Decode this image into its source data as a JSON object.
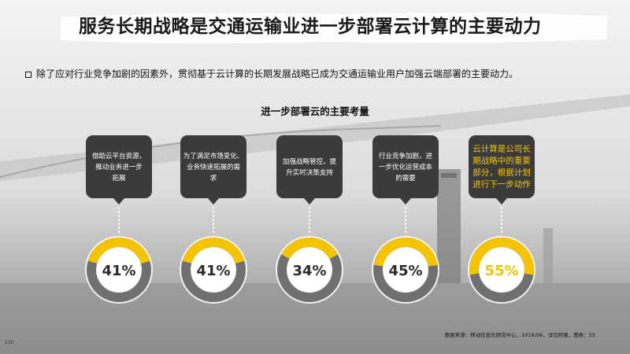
{
  "header": {
    "title": "服务长期战略是交通运输业进一步部署云计算的主要动力"
  },
  "intro_text": "除了应对行业竞争加剧的因素外，贯彻基于云计算的长期发展战略已成为交通运输业用户加强云端部署的主要动力。",
  "footer": {
    "source": "数据来源：移动信息化研究中心，2016/06，详见附录，图表：55",
    "page_number": "230"
  },
  "colors": {
    "accent": "#f5c400",
    "ring_track": "#707070",
    "card_bg": "#3b3b3b",
    "card_text": "#ffffff",
    "highlight_text": "#f5c400"
  },
  "chart_data": {
    "type": "pie",
    "title": "进一步部署云的主要考量",
    "categories": [
      "借助云平台资源，推动业务进一步拓展",
      "为了满足市场变化、业务快速拓展的需求",
      "加强战略管控，提升实时决策支持",
      "行业竞争加剧，进一步优化运营成本的需要",
      "云计算是公司长期战略中的重要部分，根据计划进行下一步动作"
    ],
    "card_lines": [
      [
        "借助云平台资源，",
        "推动业务进一步",
        "拓展"
      ],
      [
        "为了满足市场变化、",
        "业务快速拓展的需",
        "求"
      ],
      [
        "加强战略管控，提",
        "升实时决策支持"
      ],
      [
        "行业竞争加剧，进",
        "一步优化运营成本",
        "的需要"
      ],
      [
        "云计算是公司长",
        "期战略中的重要",
        "部分，根据计划",
        "进行下一步动作"
      ]
    ],
    "values": [
      41,
      41,
      34,
      45,
      55
    ],
    "labels": [
      "41%",
      "41%",
      "34%",
      "45%",
      "55%"
    ],
    "highlight_index": 4
  }
}
